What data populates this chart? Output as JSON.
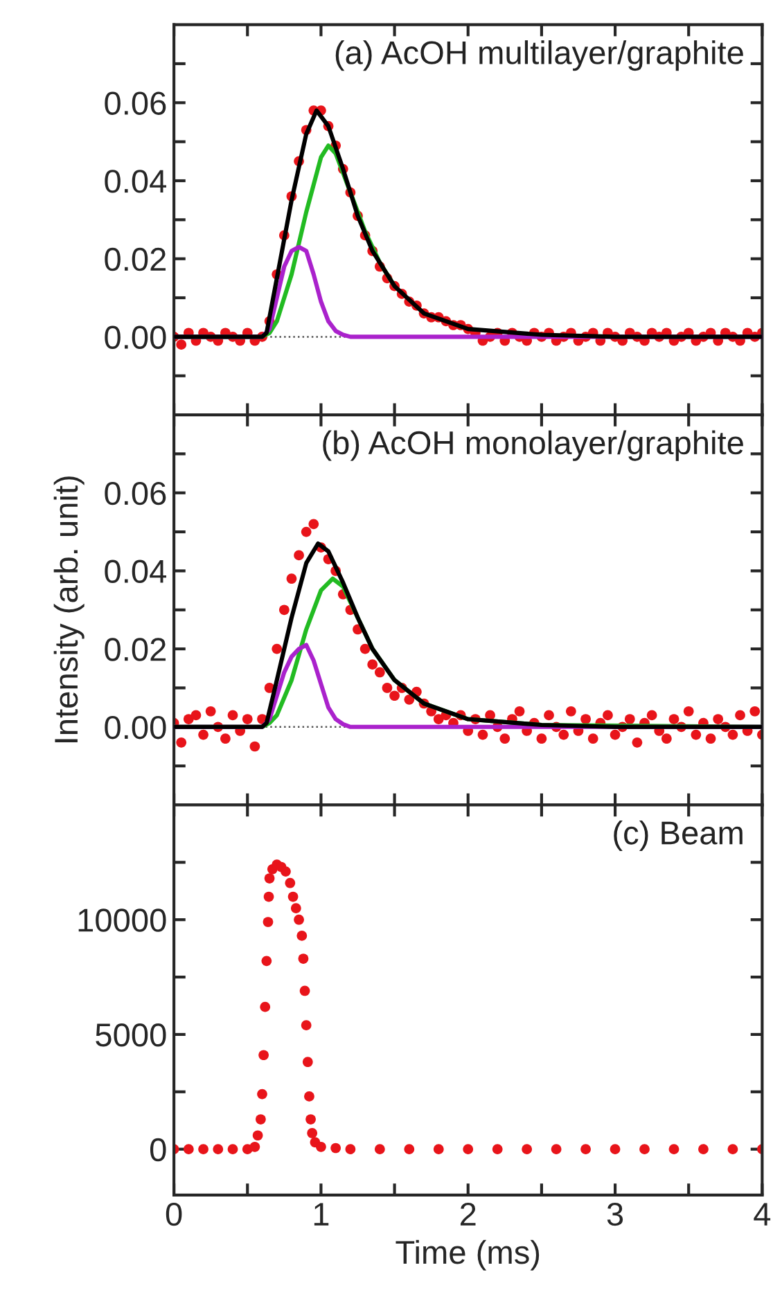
{
  "chart_data": [
    {
      "type": "scatter",
      "annotations": [
        "(a) AcOH multilayer/graphite"
      ],
      "xlim": [
        0,
        4
      ],
      "xticks": [
        0,
        {
          "value": 0.5,
          "label": null
        },
        1,
        {
          "value": 1.5,
          "label": null
        },
        2,
        {
          "value": 2.5,
          "label": null
        },
        3,
        {
          "value": 3.5,
          "label": null
        },
        4
      ],
      "ylim": [
        -0.02,
        0.08
      ],
      "yticks": [
        {
          "value": -0.01,
          "label": null
        },
        {
          "value": 0,
          "label": "0.00"
        },
        {
          "value": 0.01,
          "label": null
        },
        {
          "value": 0.02,
          "label": "0.02"
        },
        {
          "value": 0.03,
          "label": null
        },
        {
          "value": 0.04,
          "label": "0.04"
        },
        {
          "value": 0.05,
          "label": null
        },
        {
          "value": 0.06,
          "label": "0.06"
        },
        {
          "value": 0.07,
          "label": null
        }
      ],
      "tick_labels": "y",
      "grid": false,
      "legend": false,
      "ref_lines": [
        {
          "axis": "y",
          "value": 0,
          "color": "#555555",
          "line_style": "dotted"
        }
      ],
      "series": [
        {
          "type": "scatter",
          "marker": "circle",
          "color": "#e8141a",
          "x": [
            0,
            0.05,
            0.1,
            0.15,
            0.2,
            0.25,
            0.3,
            0.35,
            0.4,
            0.45,
            0.5,
            0.55,
            0.6,
            0.65,
            0.7,
            0.75,
            0.8,
            0.85,
            0.9,
            0.95,
            1.0,
            1.05,
            1.1,
            1.15,
            1.2,
            1.25,
            1.3,
            1.35,
            1.4,
            1.45,
            1.5,
            1.55,
            1.6,
            1.65,
            1.7,
            1.75,
            1.8,
            1.85,
            1.9,
            1.95,
            2.0,
            2.05,
            2.1,
            2.15,
            2.2,
            2.25,
            2.3,
            2.35,
            2.4,
            2.45,
            2.5,
            2.55,
            2.6,
            2.65,
            2.7,
            2.75,
            2.8,
            2.85,
            2.9,
            2.95,
            3.0,
            3.05,
            3.1,
            3.15,
            3.2,
            3.25,
            3.3,
            3.35,
            3.4,
            3.45,
            3.5,
            3.55,
            3.6,
            3.65,
            3.7,
            3.75,
            3.8,
            3.85,
            3.9,
            3.95,
            4.0
          ],
          "values": [
            0,
            -0.002,
            0.001,
            -0.001,
            0.001,
            0,
            -0.001,
            0.001,
            0,
            -0.001,
            0.001,
            -0.001,
            0,
            0.004,
            0.016,
            0.026,
            0.036,
            0.045,
            0.053,
            0.058,
            0.058,
            0.054,
            0.049,
            0.043,
            0.037,
            0.031,
            0.026,
            0.022,
            0.018,
            0.015,
            0.013,
            0.011,
            0.009,
            0.008,
            0.006,
            0.005,
            0.005,
            0.004,
            0.003,
            0.003,
            0.002,
            0.001,
            -0.001,
            0,
            0.001,
            -0.001,
            0.001,
            0,
            -0.001,
            0.001,
            0,
            0.001,
            -0.001,
            0,
            0.001,
            -0.001,
            0,
            0.001,
            -0.001,
            0.001,
            0,
            -0.001,
            0.001,
            0,
            -0.001,
            0.001,
            0,
            0.001,
            -0.001,
            0,
            0.001,
            -0.001,
            0,
            0.001,
            -0.001,
            0.001,
            0,
            -0.001,
            0.001,
            0,
            0.001
          ]
        },
        {
          "type": "line",
          "color": "#22bb22",
          "x": [
            0,
            0.6,
            0.65,
            0.7,
            0.8,
            0.9,
            1.0,
            1.05,
            1.1,
            1.2,
            1.3,
            1.4,
            1.5
          ],
          "values": [
            0,
            0,
            0.001,
            0.004,
            0.016,
            0.032,
            0.046,
            0.049,
            0.047,
            0.037,
            0.027,
            0.019,
            0.013
          ]
        },
        {
          "type": "line",
          "color": "#aa22cc",
          "x": [
            0,
            0.6,
            0.65,
            0.7,
            0.75,
            0.8,
            0.85,
            0.9,
            0.95,
            1.0,
            1.05,
            1.1,
            1.15,
            1.2,
            1.3,
            4
          ],
          "values": [
            0,
            0,
            0.002,
            0.01,
            0.018,
            0.022,
            0.023,
            0.022,
            0.016,
            0.009,
            0.004,
            0.0015,
            0.0005,
            0,
            0,
            0
          ]
        },
        {
          "type": "line",
          "color": "#000000",
          "x": [
            0,
            0.6,
            0.63,
            0.7,
            0.8,
            0.9,
            0.97,
            1.05,
            1.15,
            1.25,
            1.35,
            1.5,
            1.7,
            2.0,
            2.5,
            3,
            4
          ],
          "values": [
            0,
            0,
            0.001,
            0.015,
            0.035,
            0.052,
            0.058,
            0.054,
            0.043,
            0.031,
            0.022,
            0.013,
            0.006,
            0.002,
            0.0005,
            0,
            0
          ]
        }
      ]
    },
    {
      "type": "scatter",
      "annotations": [
        "(b) AcOH monolayer/graphite"
      ],
      "ylabel": "Intensity (arb. unit)",
      "xlim": [
        0,
        4
      ],
      "xticks": [
        0,
        {
          "value": 0.5,
          "label": null
        },
        1,
        {
          "value": 1.5,
          "label": null
        },
        2,
        {
          "value": 2.5,
          "label": null
        },
        3,
        {
          "value": 3.5,
          "label": null
        },
        4
      ],
      "ylim": [
        -0.02,
        0.08
      ],
      "yticks": [
        {
          "value": -0.01,
          "label": null
        },
        {
          "value": 0,
          "label": "0.00"
        },
        {
          "value": 0.01,
          "label": null
        },
        {
          "value": 0.02,
          "label": "0.02"
        },
        {
          "value": 0.03,
          "label": null
        },
        {
          "value": 0.04,
          "label": "0.04"
        },
        {
          "value": 0.05,
          "label": null
        },
        {
          "value": 0.06,
          "label": "0.06"
        },
        {
          "value": 0.07,
          "label": null
        }
      ],
      "tick_labels": "y",
      "grid": false,
      "legend": false,
      "ref_lines": [
        {
          "axis": "y",
          "value": 0,
          "color": "#555555",
          "line_style": "dotted"
        }
      ],
      "series": [
        {
          "type": "scatter",
          "marker": "circle",
          "color": "#e8141a",
          "x": [
            0,
            0.05,
            0.1,
            0.15,
            0.2,
            0.25,
            0.3,
            0.35,
            0.4,
            0.45,
            0.5,
            0.55,
            0.6,
            0.65,
            0.7,
            0.75,
            0.8,
            0.85,
            0.9,
            0.95,
            1.0,
            1.05,
            1.1,
            1.15,
            1.2,
            1.25,
            1.3,
            1.35,
            1.4,
            1.45,
            1.5,
            1.55,
            1.6,
            1.65,
            1.7,
            1.75,
            1.8,
            1.85,
            1.9,
            1.95,
            2.0,
            2.05,
            2.1,
            2.15,
            2.2,
            2.25,
            2.3,
            2.35,
            2.4,
            2.45,
            2.5,
            2.55,
            2.6,
            2.65,
            2.7,
            2.75,
            2.8,
            2.85,
            2.9,
            2.95,
            3.0,
            3.05,
            3.1,
            3.15,
            3.2,
            3.25,
            3.3,
            3.35,
            3.4,
            3.45,
            3.5,
            3.55,
            3.6,
            3.65,
            3.7,
            3.75,
            3.8,
            3.85,
            3.9,
            3.95,
            4.0
          ],
          "values": [
            0.001,
            -0.004,
            0.002,
            0.003,
            -0.002,
            0.004,
            0,
            -0.003,
            0.003,
            -0.001,
            0.002,
            -0.005,
            0.002,
            0.01,
            0.02,
            0.03,
            0.038,
            0.044,
            0.05,
            0.052,
            0.046,
            0.043,
            0.04,
            0.034,
            0.03,
            0.025,
            0.02,
            0.016,
            0.014,
            0.01,
            0.008,
            0.01,
            0.007,
            0.009,
            0.006,
            0.004,
            0.002,
            0.003,
            0.001,
            0.003,
            -0.001,
            0.002,
            -0.002,
            0.003,
            0,
            -0.003,
            0.002,
            0.004,
            -0.001,
            0.001,
            -0.003,
            0.003,
            0,
            -0.002,
            0.004,
            -0.001,
            0.002,
            -0.003,
            0.001,
            0.003,
            -0.002,
            0,
            0.002,
            -0.004,
            0.001,
            0.003,
            -0.001,
            -0.003,
            0.002,
            0,
            0.004,
            -0.002,
            0.001,
            -0.003,
            0.002,
            0,
            -0.002,
            0.003,
            -0.001,
            0.004,
            -0.002
          ]
        },
        {
          "type": "line",
          "color": "#22bb22",
          "x": [
            0,
            0.6,
            0.65,
            0.7,
            0.8,
            0.9,
            1.0,
            1.08,
            1.15,
            1.25,
            1.35,
            1.5,
            1.7,
            2.0,
            2.5,
            4
          ],
          "values": [
            0,
            0,
            0.001,
            0.003,
            0.012,
            0.025,
            0.035,
            0.038,
            0.036,
            0.028,
            0.02,
            0.012,
            0.006,
            0.002,
            0.0005,
            0
          ]
        },
        {
          "type": "line",
          "color": "#aa22cc",
          "x": [
            0,
            0.6,
            0.65,
            0.7,
            0.75,
            0.8,
            0.85,
            0.9,
            0.95,
            1.0,
            1.05,
            1.1,
            1.15,
            1.2,
            1.3,
            4
          ],
          "values": [
            0,
            0,
            0.002,
            0.008,
            0.014,
            0.018,
            0.02,
            0.021,
            0.017,
            0.011,
            0.005,
            0.002,
            0.0007,
            0,
            0,
            0
          ]
        },
        {
          "type": "line",
          "color": "#000000",
          "x": [
            0,
            0.6,
            0.63,
            0.7,
            0.8,
            0.9,
            0.98,
            1.05,
            1.15,
            1.25,
            1.35,
            1.5,
            1.7,
            2.0,
            2.5,
            3,
            4
          ],
          "values": [
            0,
            0,
            0.001,
            0.012,
            0.028,
            0.042,
            0.047,
            0.045,
            0.037,
            0.028,
            0.02,
            0.012,
            0.006,
            0.002,
            0.0005,
            0,
            0
          ]
        }
      ]
    },
    {
      "type": "scatter",
      "annotations": [
        "(c) Beam"
      ],
      "xlabel": "Time (ms)",
      "xlim": [
        0,
        4
      ],
      "xticks": [
        0,
        {
          "value": 0.5,
          "label": null
        },
        1,
        {
          "value": 1.5,
          "label": null
        },
        2,
        {
          "value": 2.5,
          "label": null
        },
        3,
        {
          "value": 3.5,
          "label": null
        },
        4
      ],
      "ylim": [
        -2000,
        15000
      ],
      "yticks": [
        0,
        {
          "value": 2500,
          "label": null
        },
        5000,
        {
          "value": 7500,
          "label": null
        },
        10000,
        {
          "value": 12500,
          "label": null
        }
      ],
      "grid": false,
      "legend": false,
      "series": [
        {
          "type": "scatter",
          "marker": "circle",
          "color": "#e8141a",
          "x": [
            0,
            0.1,
            0.2,
            0.3,
            0.4,
            0.5,
            0.55,
            0.57,
            0.59,
            0.6,
            0.61,
            0.62,
            0.63,
            0.64,
            0.645,
            0.65,
            0.67,
            0.7,
            0.73,
            0.76,
            0.79,
            0.81,
            0.83,
            0.85,
            0.87,
            0.88,
            0.89,
            0.9,
            0.91,
            0.92,
            0.93,
            0.94,
            0.96,
            1.0,
            1.1,
            1.2,
            1.4,
            1.6,
            1.8,
            2.0,
            2.2,
            2.4,
            2.6,
            2.8,
            3.0,
            3.2,
            3.4,
            3.6,
            3.8,
            4.0
          ],
          "values": [
            0,
            0,
            0,
            0,
            0,
            0,
            100,
            600,
            1300,
            2400,
            4100,
            6200,
            8200,
            9900,
            11000,
            11800,
            12200,
            12400,
            12300,
            12100,
            11600,
            11000,
            10500,
            10000,
            9300,
            8300,
            6900,
            5400,
            3800,
            2300,
            1300,
            700,
            300,
            100,
            50,
            0,
            0,
            0,
            0,
            0,
            0,
            0,
            0,
            0,
            0,
            0,
            0,
            0,
            0,
            0
          ]
        }
      ]
    }
  ]
}
